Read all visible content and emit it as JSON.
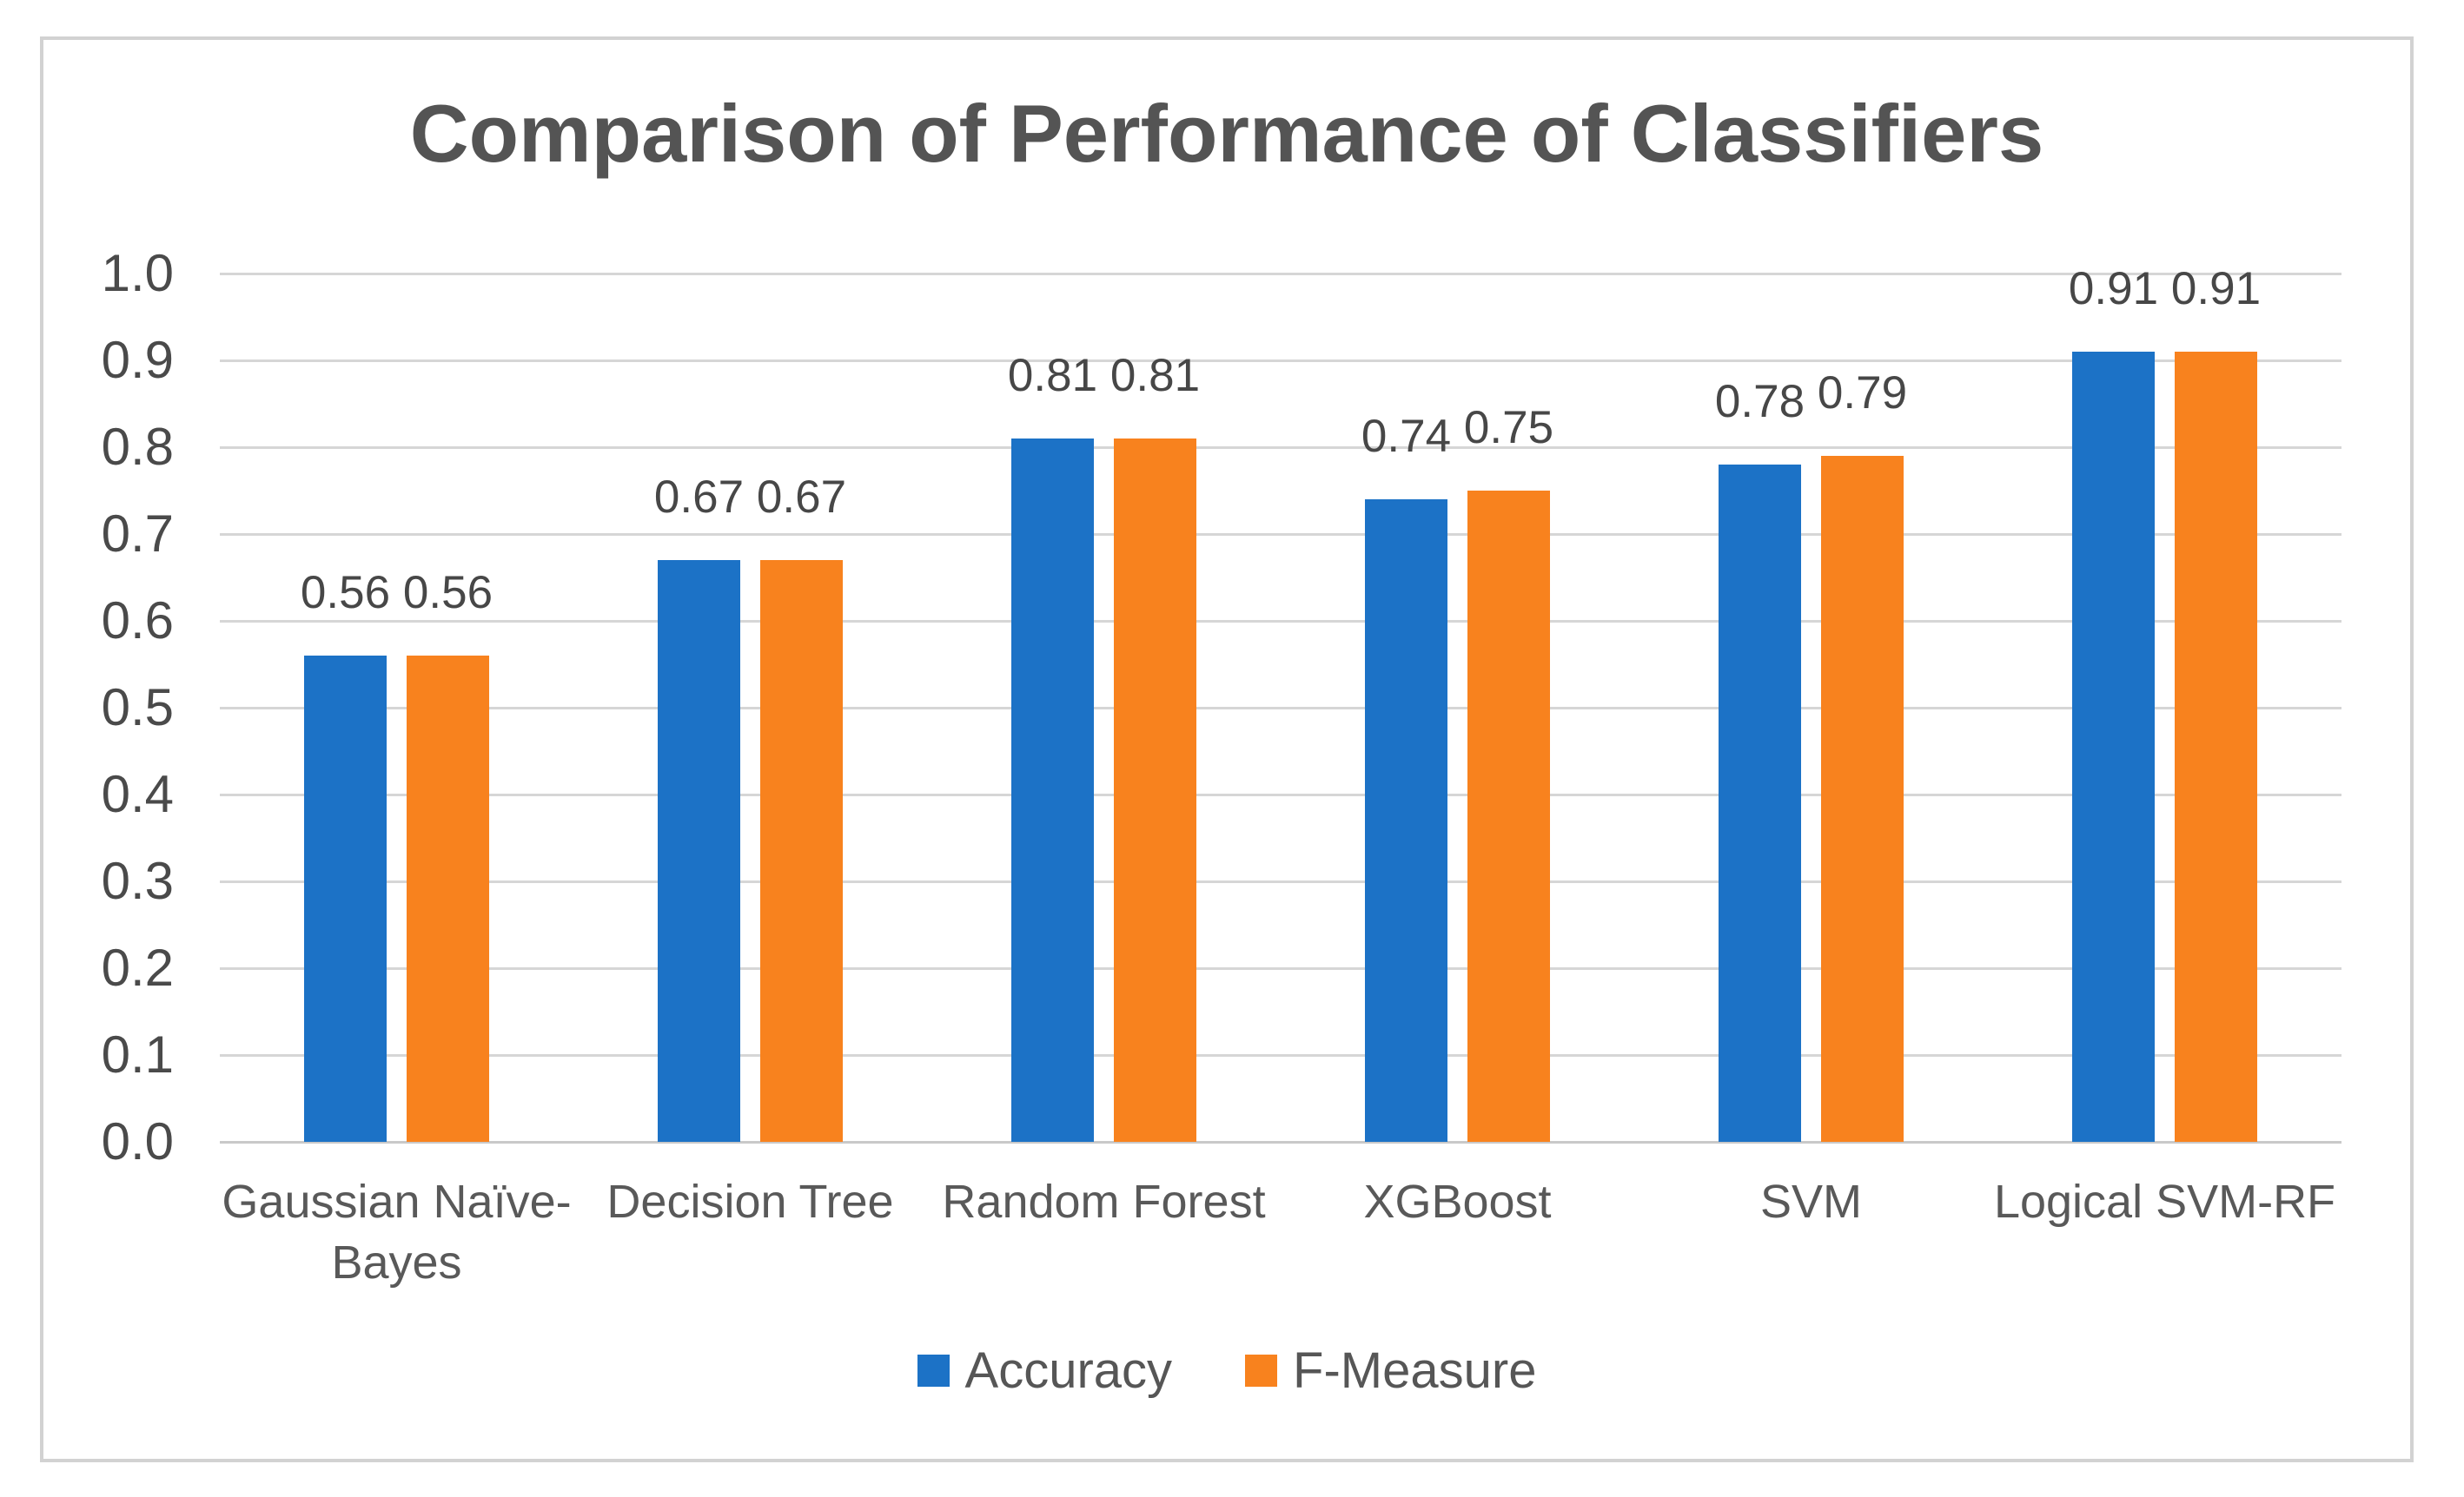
{
  "title": "Comparison of Performance of Classifiers",
  "chart_data": {
    "type": "bar",
    "title": "Comparison of Performance of Classifiers",
    "categories": [
      "Gaussian Naïve-Bayes",
      "Decision Tree",
      "Random Forest",
      "XGBoost",
      "SVM",
      "Logical SVM-RF"
    ],
    "series": [
      {
        "name": "Accuracy",
        "color": "#1c72c6",
        "values": [
          0.56,
          0.67,
          0.81,
          0.74,
          0.78,
          0.91
        ]
      },
      {
        "name": "F-Measure",
        "color": "#f8821e",
        "values": [
          0.56,
          0.67,
          0.81,
          0.75,
          0.79,
          0.91
        ]
      }
    ],
    "data_labels": {
      "Accuracy": [
        "0.56",
        "0.67",
        "0.81",
        "0.74",
        "0.78",
        "0.91"
      ],
      "F-Measure": [
        "0.56",
        "0.67",
        "0.81",
        "0.75",
        "0.79",
        "0.91"
      ]
    },
    "xlabel": "",
    "ylabel": "",
    "ylim": [
      0.0,
      1.0
    ],
    "y_ticks": [
      "1.0",
      "0.9",
      "0.8",
      "0.7",
      "0.6",
      "0.5",
      "0.4",
      "0.3",
      "0.2",
      "0.1",
      "0.0"
    ],
    "grid": true,
    "legend_position": "bottom",
    "legend": [
      "Accuracy",
      "F-Measure"
    ]
  },
  "colors": {
    "accuracy_blue": "#1c72c6",
    "f_measure_orange": "#f8821e",
    "gridline": "#d6d6d6",
    "title_text": "#545454",
    "axis_text": "#595959",
    "panel_border": "#d2d2d2"
  }
}
